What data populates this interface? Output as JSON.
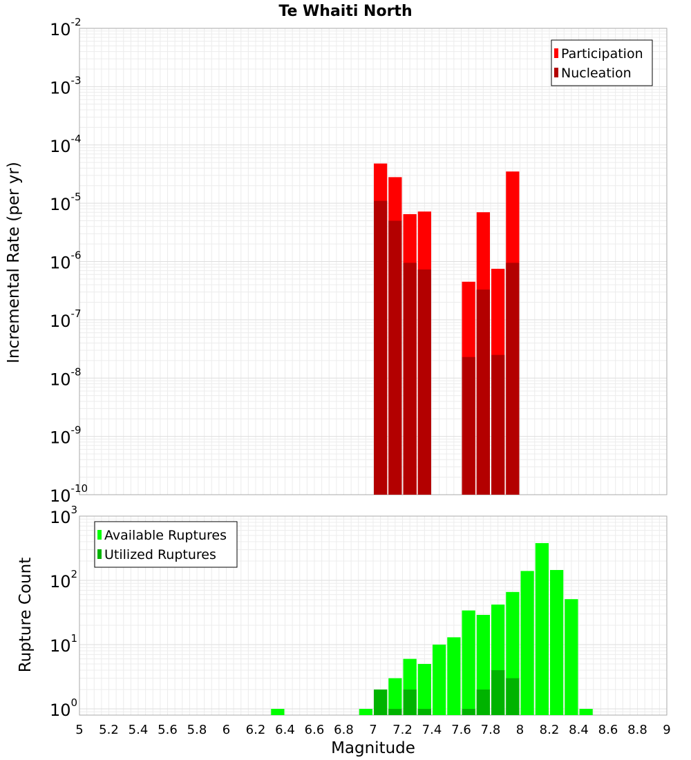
{
  "chart_data": [
    {
      "type": "bar",
      "title": "Te Whaiti North",
      "ylabel": "Incremental Rate (per yr)",
      "xlabel": "",
      "xlim": [
        5,
        9
      ],
      "yscale": "log",
      "ylim": [
        1e-10,
        0.01
      ],
      "ytick_labels": [
        {
          "base": "10",
          "exp": "-10"
        },
        {
          "base": "10",
          "exp": "-9"
        },
        {
          "base": "10",
          "exp": "-8"
        },
        {
          "base": "10",
          "exp": "-7"
        },
        {
          "base": "10",
          "exp": "-6"
        },
        {
          "base": "10",
          "exp": "-5"
        },
        {
          "base": "10",
          "exp": "-4"
        },
        {
          "base": "10",
          "exp": "-3"
        },
        {
          "base": "10",
          "exp": "-2"
        }
      ],
      "grid": true,
      "legend_position": "top-right",
      "bin_width": 0.1,
      "x": [
        7.05,
        7.15,
        7.25,
        7.35,
        7.65,
        7.75,
        7.85,
        7.95
      ],
      "series": [
        {
          "name": "Participation",
          "color": "#ff0000",
          "values": [
            4.8e-05,
            2.8e-05,
            6.5e-06,
            7.2e-06,
            4.5e-07,
            7e-06,
            7.5e-07,
            3.5e-05
          ]
        },
        {
          "name": "Nucleation",
          "color": "#b30000",
          "values": [
            1.1e-05,
            5e-06,
            9.5e-07,
            7.3e-07,
            2.3e-08,
            3.3e-07,
            2.5e-08,
            9.5e-07
          ]
        }
      ]
    },
    {
      "type": "bar",
      "ylabel": "Rupture Count",
      "xlabel": "Magnitude",
      "xlim": [
        5,
        9
      ],
      "yscale": "log",
      "ylim": [
        0.8,
        1000
      ],
      "ytick_labels": [
        {
          "base": "10",
          "exp": "0"
        },
        {
          "base": "10",
          "exp": "1"
        },
        {
          "base": "10",
          "exp": "2"
        },
        {
          "base": "10",
          "exp": "3"
        }
      ],
      "xtick_labels": [
        "5",
        "5.2",
        "5.4",
        "5.6",
        "5.8",
        "6",
        "6.2",
        "6.4",
        "6.6",
        "6.8",
        "7",
        "7.2",
        "7.4",
        "7.6",
        "7.8",
        "8",
        "8.2",
        "8.4",
        "8.6",
        "8.8",
        "9"
      ],
      "grid": true,
      "legend_position": "top-left",
      "bin_width": 0.1,
      "series": [
        {
          "name": "Available Ruptures",
          "color": "#00ff00",
          "x": [
            6.35,
            6.95,
            7.05,
            7.15,
            7.25,
            7.35,
            7.45,
            7.55,
            7.65,
            7.75,
            7.85,
            7.95,
            8.05,
            8.15,
            8.25,
            8.35,
            8.45
          ],
          "values": [
            1,
            1,
            2,
            3,
            6,
            5,
            10,
            13,
            34,
            29,
            42,
            66,
            140,
            380,
            145,
            51,
            1
          ]
        },
        {
          "name": "Utilized Ruptures",
          "color": "#00b300",
          "x": [
            7.05,
            7.15,
            7.25,
            7.35,
            7.65,
            7.75,
            7.85,
            7.95
          ],
          "values": [
            2,
            1,
            2,
            1,
            1,
            2,
            4,
            3
          ]
        }
      ]
    }
  ]
}
